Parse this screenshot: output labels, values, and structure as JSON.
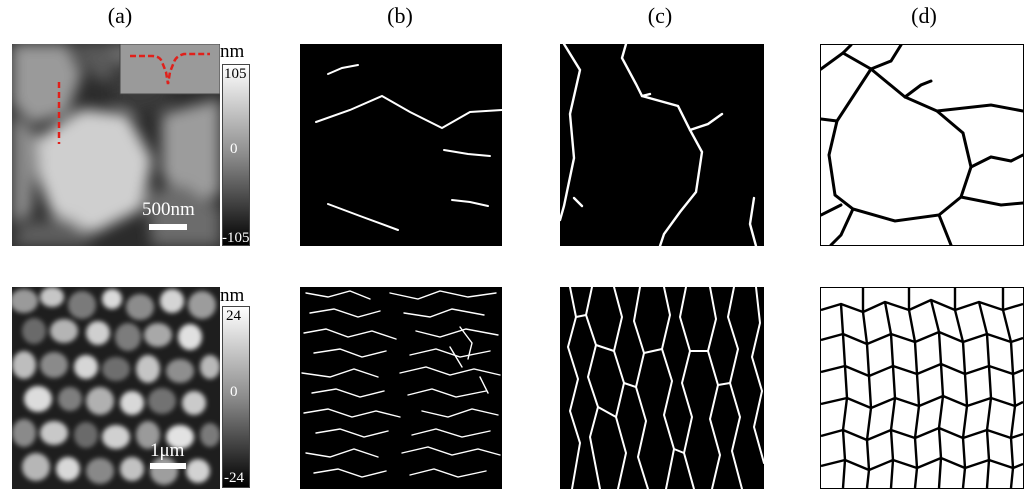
{
  "figure": {
    "panel_labels": [
      "(a)",
      "(b)",
      "(c)",
      "(d)"
    ],
    "row1": {
      "colorbar": {
        "unit": "nm",
        "max": "105",
        "mid": "0",
        "min": "-105"
      },
      "scale_bar": "500nm"
    },
    "row2": {
      "colorbar": {
        "unit": "nm",
        "max": "24",
        "mid": "0",
        "min": "-24"
      },
      "scale_bar": "1μm"
    },
    "colors": {
      "profile_line": "#e0201b",
      "edge_line": "#ffffff",
      "grain_boundary": "#000000"
    }
  }
}
